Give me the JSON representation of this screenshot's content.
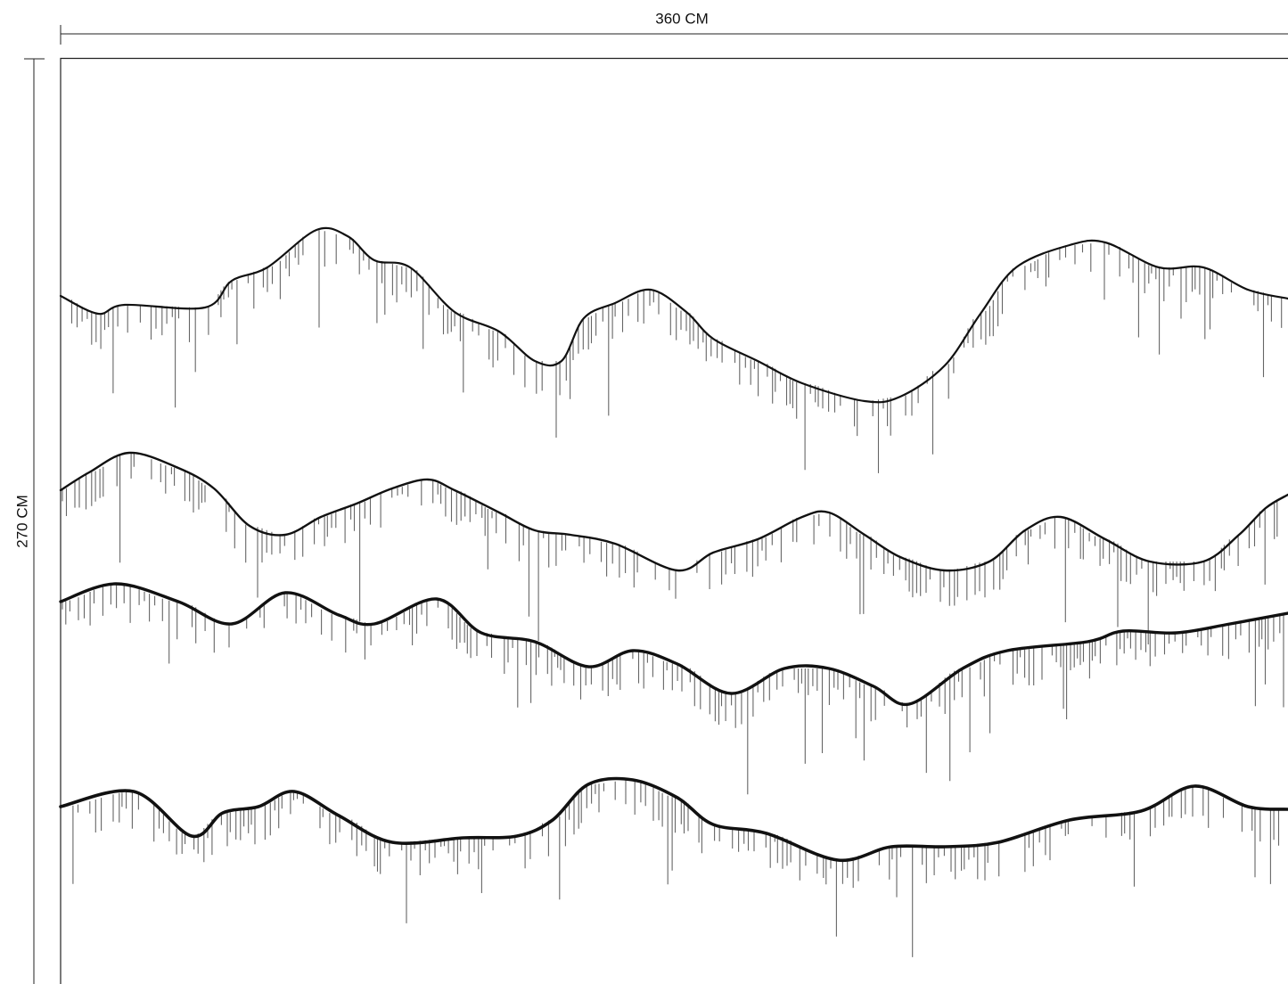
{
  "width_label": "360 CM",
  "height_label": "270 CM"
}
